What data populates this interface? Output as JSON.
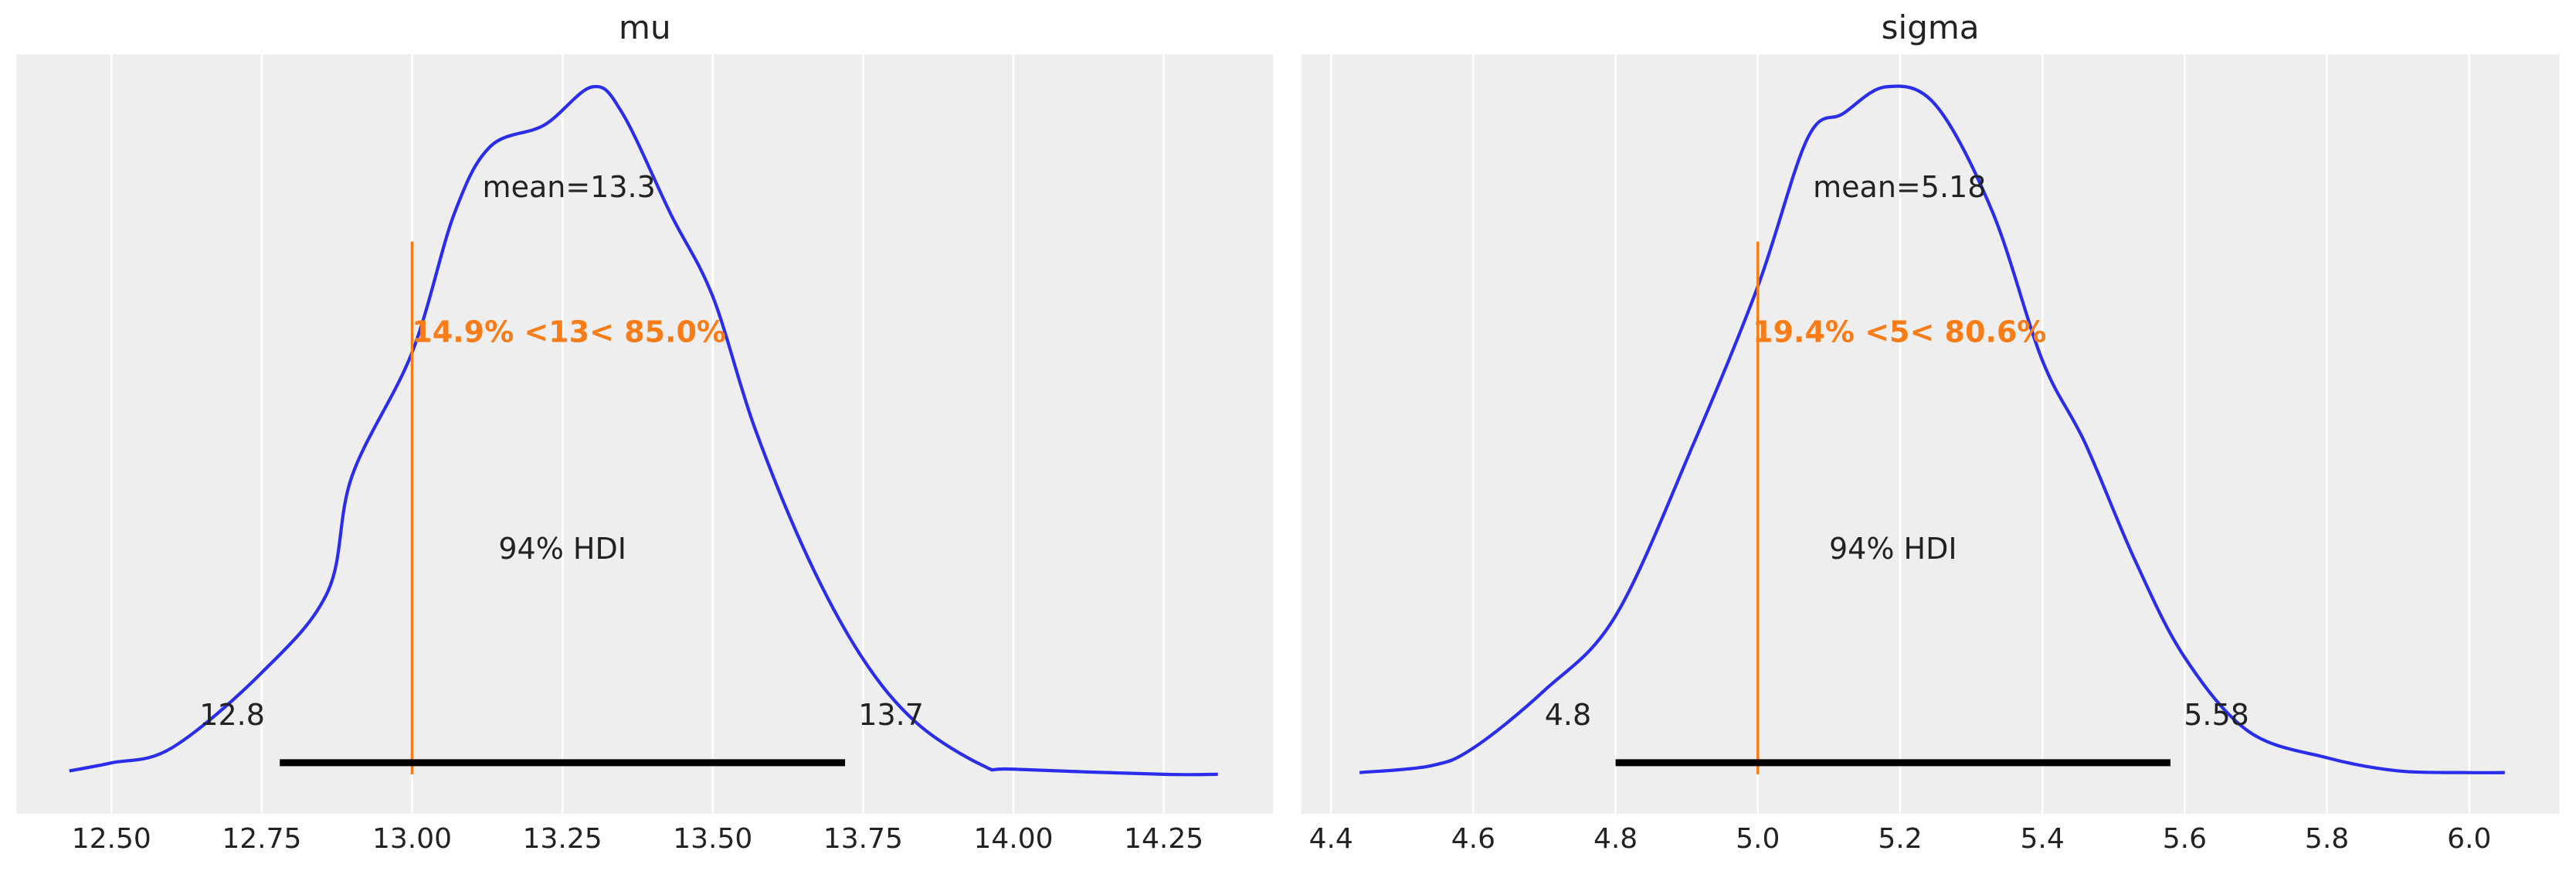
{
  "chart_data": [
    {
      "type": "density",
      "title": "mu",
      "color": "#2a2eec",
      "grid": true,
      "x": [
        12.43,
        12.5,
        12.6,
        12.75,
        12.86,
        12.9,
        13.0,
        13.07,
        13.13,
        13.22,
        13.3,
        13.35,
        13.43,
        13.5,
        13.57,
        13.66,
        13.75,
        13.84,
        13.95,
        14.0,
        14.25,
        14.34
      ],
      "values": [
        0.008,
        0.027,
        0.062,
        0.24,
        0.432,
        0.704,
        0.996,
        1.323,
        1.482,
        1.533,
        1.623,
        1.56,
        1.323,
        1.128,
        0.817,
        0.506,
        0.272,
        0.12,
        0.02,
        0.012,
        0.0,
        0.0
      ],
      "xlim": [
        12.342,
        14.432
      ],
      "ylim": [
        -0.093,
        1.7
      ],
      "xticks": [
        {
          "value": 12.5,
          "label": "12.50"
        },
        {
          "value": 12.75,
          "label": "12.75"
        },
        {
          "value": 13.0,
          "label": "13.00"
        },
        {
          "value": 13.25,
          "label": "13.25"
        },
        {
          "value": 13.5,
          "label": "13.50"
        },
        {
          "value": 13.75,
          "label": "13.75"
        },
        {
          "value": 14.0,
          "label": "14.00"
        },
        {
          "value": 14.25,
          "label": "14.25"
        }
      ],
      "mean_label": "mean=13.3",
      "ref_val": 13,
      "ref_label": "14.9% <13< 85.0%",
      "ref_color": "#fa7c17",
      "hdi_label": "94% HDI",
      "hdi": [
        12.78,
        13.72
      ],
      "hdi_labels": [
        "12.8",
        "13.7"
      ]
    },
    {
      "type": "density",
      "title": "sigma",
      "color": "#2a2eec",
      "grid": true,
      "x": [
        4.44,
        4.54,
        4.6,
        4.7,
        4.8,
        4.91,
        5.0,
        5.07,
        5.12,
        5.18,
        5.25,
        5.33,
        5.4,
        5.46,
        5.53,
        5.6,
        5.69,
        5.8,
        5.9,
        6.0,
        6.05
      ],
      "values": [
        0.004,
        0.02,
        0.062,
        0.198,
        0.374,
        0.782,
        1.152,
        1.502,
        1.56,
        1.623,
        1.58,
        1.327,
        0.977,
        0.782,
        0.506,
        0.276,
        0.101,
        0.039,
        0.008,
        0.004,
        0.004
      ],
      "xlim": [
        4.358,
        6.127
      ],
      "ylim": [
        -0.093,
        1.7
      ],
      "xticks": [
        4.4,
        4.6,
        4.8,
        {
          "value": 5.0,
          "label": "5.0"
        },
        5.2,
        5.4,
        5.6,
        5.8,
        {
          "value": 6.0,
          "label": "6.0"
        }
      ],
      "mean_label": "mean=5.18",
      "ref_val": 5,
      "ref_label": "19.4% <5< 80.6%",
      "ref_color": "#fa7c17",
      "hdi_label": "94% HDI",
      "hdi": [
        4.8,
        5.58
      ],
      "hdi_labels": [
        "4.8",
        "5.58"
      ]
    }
  ]
}
